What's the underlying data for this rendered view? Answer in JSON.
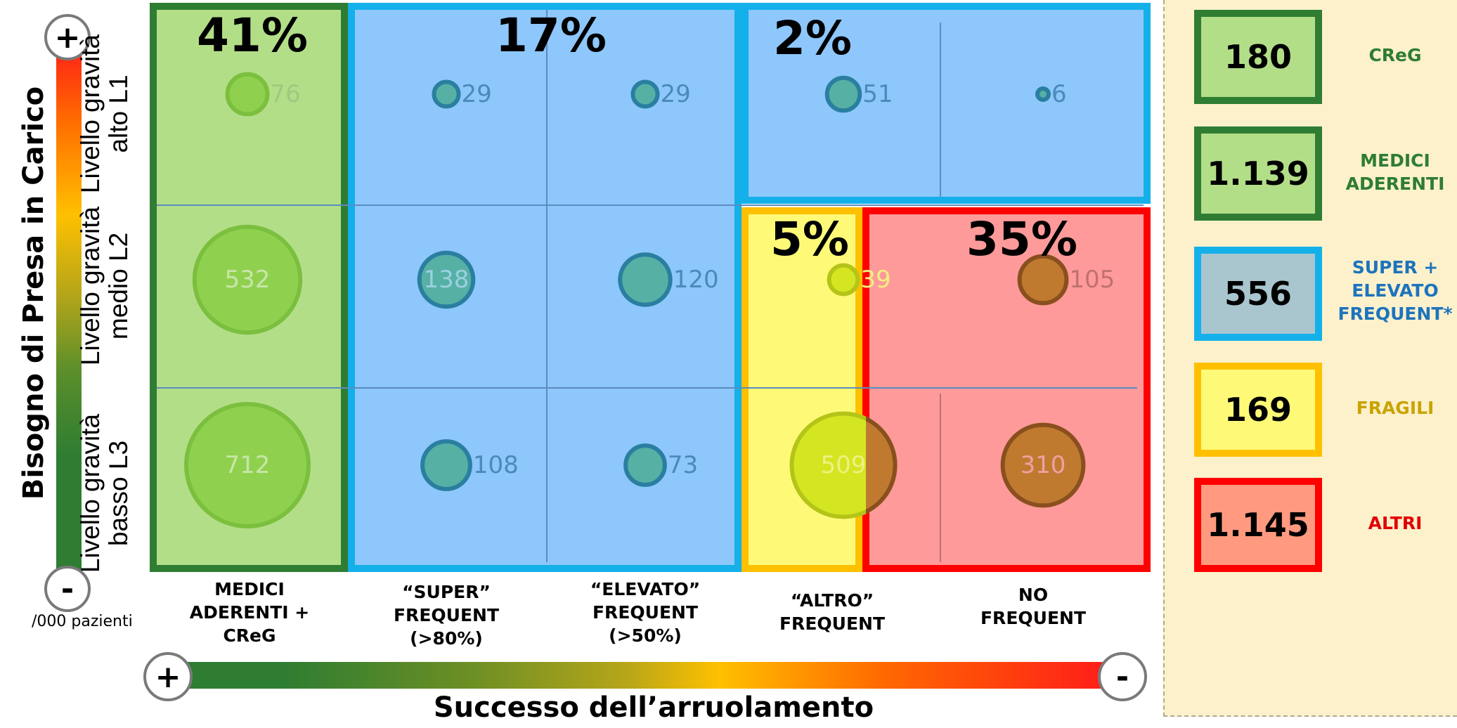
{
  "y_axis": {
    "title": "Bisogno di Presa in Carico",
    "top_sign": "+",
    "bottom_sign": "-",
    "unit_note": "/000 pazienti"
  },
  "x_axis": {
    "title": "Successo dell’arruolamento",
    "left_sign": "+",
    "right_sign": "-"
  },
  "rows": [
    {
      "label": "Livello gravità\nalto L1"
    },
    {
      "label": "Livello gravità\nmedio L2"
    },
    {
      "label": "Livello gravità\nbasso L3"
    }
  ],
  "columns": [
    {
      "label": "MEDICI\nADERENTI +\nCReG"
    },
    {
      "label": "“SUPER”\nFREQUENT\n(>80%)"
    },
    {
      "label": "“ELEVATO”\nFREQUENT\n(>50%)"
    },
    {
      "label": "“ALTRO”\nFREQUENT"
    },
    {
      "label": "NO\nFREQUENT"
    }
  ],
  "groups": [
    {
      "percent": "41%",
      "color": "#2e7d32",
      "fill": "#b3de88"
    },
    {
      "percent": "17%",
      "color": "#14b0ea",
      "fill": "#8ec7fb"
    },
    {
      "percent": "2%",
      "color": "#14b0ea",
      "fill": "#8ec7fb"
    },
    {
      "percent": "5%",
      "color": "#ffc000",
      "fill": "#fefa78"
    },
    {
      "percent": "35%",
      "color": "#ff0000",
      "fill": "#ff9a9a"
    }
  ],
  "bubbles": [
    {
      "row": 0,
      "col": 0,
      "value": 76,
      "label": "76"
    },
    {
      "row": 0,
      "col": 1,
      "value": 29,
      "label": "29"
    },
    {
      "row": 0,
      "col": 2,
      "value": 29,
      "label": "29"
    },
    {
      "row": 0,
      "col": 3,
      "value": 51,
      "label": "51"
    },
    {
      "row": 0,
      "col": 4,
      "value": 6,
      "label": "6"
    },
    {
      "row": 1,
      "col": 0,
      "value": 532,
      "label": "532"
    },
    {
      "row": 1,
      "col": 1,
      "value": 138,
      "label": "138"
    },
    {
      "row": 1,
      "col": 2,
      "value": 120,
      "label": "120"
    },
    {
      "row": 1,
      "col": 3,
      "value": 39,
      "label": "39"
    },
    {
      "row": 1,
      "col": 4,
      "value": 105,
      "label": "105"
    },
    {
      "row": 2,
      "col": 0,
      "value": 712,
      "label": "712"
    },
    {
      "row": 2,
      "col": 1,
      "value": 108,
      "label": "108"
    },
    {
      "row": 2,
      "col": 2,
      "value": 73,
      "label": "73"
    },
    {
      "row": 2,
      "col": 3,
      "value": 509,
      "label": "509"
    },
    {
      "row": 2,
      "col": 4,
      "value": 310,
      "label": "310"
    }
  ],
  "legend": [
    {
      "value": "180",
      "label": "CReG",
      "border": "#2e7d32",
      "fill": "#b3de88",
      "text_color": "#2e7d32"
    },
    {
      "value": "1.139",
      "label": "MEDICI\nADERENTI",
      "border": "#2e7d32",
      "fill": "#b3de88",
      "text_color": "#2e7d32"
    },
    {
      "value": "556",
      "label": "SUPER +\nELEVATO\nFREQUENT*",
      "border": "#14b0ea",
      "fill": "#a9c6cf",
      "text_color": "#1c74bc"
    },
    {
      "value": "169",
      "label": "FRAGILI",
      "border": "#ffc000",
      "fill": "#fefa78",
      "text_color": "#c9a400"
    },
    {
      "value": "1.145",
      "label": "ALTRI",
      "border": "#ff0000",
      "fill": "#ff9a80",
      "text_color": "#e00000"
    }
  ]
}
